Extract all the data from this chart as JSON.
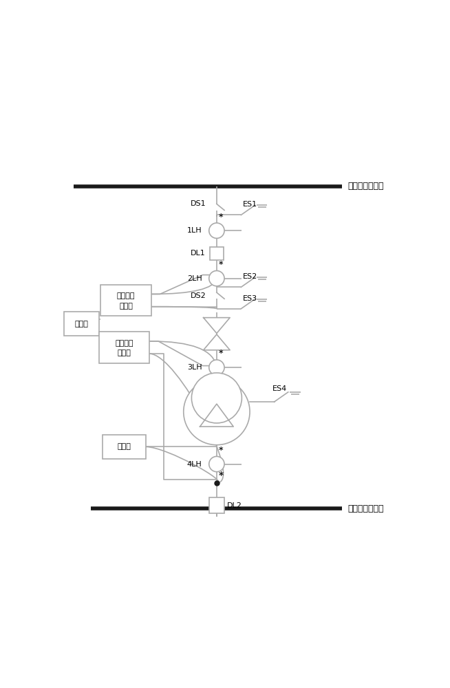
{
  "bg_color": "#ffffff",
  "line_color": "#1a1a1a",
  "gray_color": "#aaaaaa",
  "main_lw": 4.0,
  "comp_lw": 1.2,
  "fig_width": 6.54,
  "fig_height": 10.0,
  "title_top": "主变高压侧母线",
  "title_bottom": "主变低压侧母线",
  "label_DS1": "DS1",
  "label_ES1": "ES1",
  "label_1LH": "1LH",
  "label_DL1": "DL1",
  "label_2LH": "2LH",
  "label_DS2": "DS2",
  "label_ES2": "ES2",
  "label_ES3": "ES3",
  "label_3LH": "3LH",
  "label_ES4": "ES4",
  "label_4LH": "4LH",
  "label_DL2": "DL2",
  "label_box1_line1": "变压器测",
  "label_box1_line2": "控装置",
  "label_luboqi": "录波器",
  "label_box2_line1": "变压器保",
  "label_box2_line2": "护装置",
  "label_tongliu": "通流源",
  "MX": 0.46
}
